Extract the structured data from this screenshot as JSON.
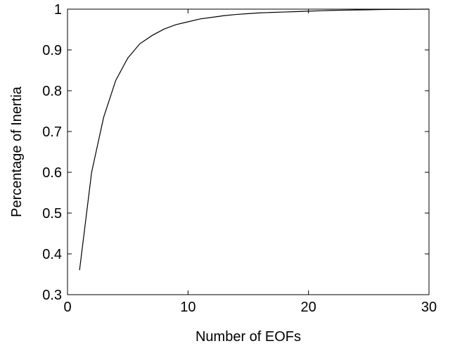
{
  "chart_data": {
    "type": "line",
    "title": "",
    "xlabel": "Number of EOFs",
    "ylabel": "Percentage of Inertia",
    "xlim": [
      0,
      30
    ],
    "ylim": [
      0.3,
      1
    ],
    "xticks": [
      0,
      10,
      20,
      30
    ],
    "xtick_labels": [
      "0",
      "10",
      "20",
      "30"
    ],
    "yticks": [
      0.3,
      0.4,
      0.5,
      0.6,
      0.7,
      0.8,
      0.9,
      1
    ],
    "ytick_labels": [
      "0.3",
      "0.4",
      "0.5",
      "0.6",
      "0.7",
      "0.8",
      "0.9",
      "1"
    ],
    "grid": false,
    "line_color": "#000000",
    "series": [
      {
        "x": [
          1,
          2,
          3,
          4,
          5,
          6,
          7,
          8,
          9,
          10,
          11,
          12,
          13,
          14,
          15,
          16,
          17,
          18,
          19,
          20,
          21,
          22,
          23,
          24,
          25,
          26,
          27,
          28,
          29,
          30
        ],
        "values": [
          0.36,
          0.6,
          0.735,
          0.825,
          0.88,
          0.915,
          0.935,
          0.951,
          0.962,
          0.969,
          0.976,
          0.98,
          0.984,
          0.987,
          0.989,
          0.991,
          0.992,
          0.993,
          0.994,
          0.995,
          0.996,
          0.997,
          0.9975,
          0.998,
          0.9985,
          0.999,
          0.9993,
          0.9996,
          0.9998,
          1.0
        ]
      }
    ]
  }
}
